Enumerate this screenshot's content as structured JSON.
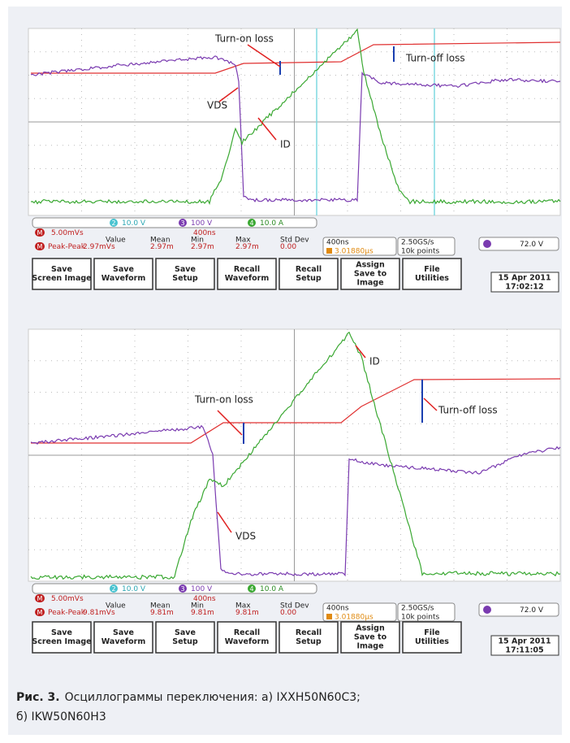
{
  "panels": [
    {
      "annotations": {
        "turn_on": "Turn-on loss",
        "turn_off": "Turn-off loss",
        "vds": "VDS",
        "id": "ID"
      },
      "channels": [
        {
          "num": "2",
          "scale": "10.0 V"
        },
        {
          "num": "3",
          "scale": "100 V"
        },
        {
          "num": "4",
          "scale": "10.0 A"
        }
      ],
      "math": {
        "label": "M",
        "scale": "5.00mVs",
        "timebase": "400ns"
      },
      "measure": {
        "headers": [
          "Value",
          "Mean",
          "Min",
          "Max",
          "Std Dev"
        ],
        "name": "Peak-Peak",
        "values": [
          "2.97mVs",
          "2.97m",
          "2.97m",
          "2.97m",
          "0.00"
        ]
      },
      "timebase": "400ns",
      "trigger_time": "3.01880µs",
      "sample_rate": "2.50GS/s",
      "record": "10k points",
      "trigger_level": "72.0 V",
      "buttons": [
        [
          "Save",
          "Screen Image"
        ],
        [
          "Save",
          "Waveform"
        ],
        [
          "Save",
          "Setup"
        ],
        [
          "Recall",
          "Waveform"
        ],
        [
          "Recall",
          "Setup"
        ],
        [
          "Assign",
          "Save to",
          "Image"
        ],
        [
          "File",
          "Utilities"
        ]
      ],
      "date": "15 Apr 2011",
      "time": "17:02:12"
    },
    {
      "annotations": {
        "turn_on": "Turn-on loss",
        "turn_off": "Turn-off loss",
        "vds": "VDS",
        "id": "ID"
      },
      "channels": [
        {
          "num": "2",
          "scale": "10.0 V"
        },
        {
          "num": "3",
          "scale": "100 V"
        },
        {
          "num": "4",
          "scale": "10.0 A"
        }
      ],
      "math": {
        "label": "M",
        "scale": "5.00mVs",
        "timebase": "400ns"
      },
      "measure": {
        "headers": [
          "Value",
          "Mean",
          "Min",
          "Max",
          "Std Dev"
        ],
        "name": "Peak-Peak",
        "values": [
          "9.81mVs",
          "9.81m",
          "9.81m",
          "9.81m",
          "0.00"
        ]
      },
      "timebase": "400ns",
      "trigger_time": "3.01880µs",
      "sample_rate": "2.50GS/s",
      "record": "10k points",
      "trigger_level": "72.0 V",
      "buttons": [
        [
          "Save",
          "Screen Image"
        ],
        [
          "Save",
          "Waveform"
        ],
        [
          "Save",
          "Setup"
        ],
        [
          "Recall",
          "Waveform"
        ],
        [
          "Recall",
          "Setup"
        ],
        [
          "Assign",
          "Save to",
          "Image"
        ],
        [
          "File",
          "Utilities"
        ]
      ],
      "date": "15 Apr 2011",
      "time": "17:11:05"
    }
  ],
  "caption": {
    "label": "Рис. 3.",
    "lines": [
      "Осциллограммы переключения: а) IXXH50N60C3;",
      "б) IKW50N60H3"
    ]
  }
}
